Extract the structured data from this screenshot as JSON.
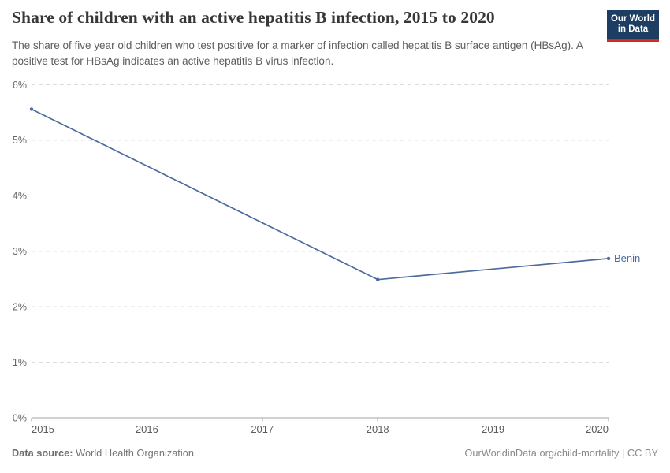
{
  "header": {
    "logo": {
      "line1": "Our World",
      "line2": "in Data",
      "bg": "#1d3d63",
      "bar": "#d42b21"
    }
  },
  "chart_data": {
    "type": "line",
    "title": "Share of children with an active hepatitis B infection, 2015 to 2020",
    "subtitle": "The share of five year old children who test positive for a marker of infection called hepatitis B surface antigen (HBsAg). A positive test for HBsAg indicates an active hepatitis B virus infection.",
    "x": [
      2015,
      2018,
      2020
    ],
    "series": [
      {
        "name": "Benin",
        "values": [
          5.56,
          2.49,
          2.87
        ],
        "color": "#4c6a9c"
      }
    ],
    "xlim": [
      2015,
      2020
    ],
    "ylim": [
      0,
      6
    ],
    "xticks": [
      2015,
      2016,
      2017,
      2018,
      2019,
      2020
    ],
    "yticks": [
      0,
      1,
      2,
      3,
      4,
      5,
      6
    ],
    "ytick_suffix": "%",
    "xlabel": "",
    "ylabel": "",
    "grid": "horizontal-dashed",
    "legend": "line-end-label"
  },
  "footer": {
    "datasource_label": "Data source:",
    "datasource_value": "World Health Organization",
    "credit": "OurWorldinData.org/child-mortality | CC BY"
  }
}
